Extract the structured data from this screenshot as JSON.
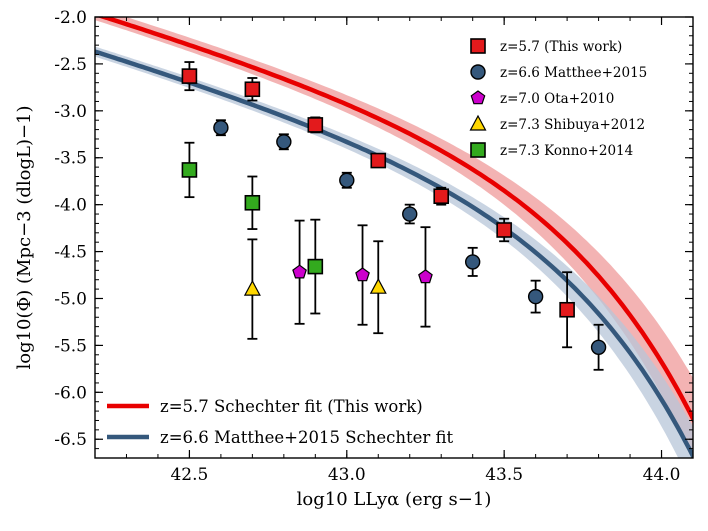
{
  "chart_data": {
    "type": "scatter",
    "xlabel": "log10 LLyα (erg s−1)",
    "ylabel": "log10(Φ) (Mpc−3 (dlogL)−1)",
    "xlim": [
      42.2,
      44.1
    ],
    "ylim": [
      -6.7,
      -2.0
    ],
    "xticks": [
      42.5,
      43.0,
      43.5,
      44.0
    ],
    "xtick_labels": [
      "42.5",
      "43.0",
      "43.5",
      "44.0"
    ],
    "yticks": [
      -2.0,
      -2.5,
      -3.0,
      -3.5,
      -4.0,
      -4.5,
      -5.0,
      -5.5,
      -6.0,
      -6.5
    ],
    "ytick_labels": [
      "-2.0",
      "-2.5",
      "-3.0",
      "-3.5",
      "-4.0",
      "-4.5",
      "-5.0",
      "-5.5",
      "-6.0",
      "-6.5"
    ],
    "series": [
      {
        "name": "z=5.7 (This work)",
        "marker": "square",
        "color": "#e31a1c",
        "points": [
          {
            "x": 42.5,
            "y": -2.63,
            "err": 0.15
          },
          {
            "x": 42.7,
            "y": -2.77,
            "err": 0.12
          },
          {
            "x": 42.9,
            "y": -3.15,
            "err": 0.08
          },
          {
            "x": 43.1,
            "y": -3.53,
            "err": 0.06
          },
          {
            "x": 43.3,
            "y": -3.91,
            "err": 0.09
          },
          {
            "x": 43.5,
            "y": -4.27,
            "err": 0.12
          },
          {
            "x": 43.7,
            "y": -5.12,
            "err": 0.4
          }
        ]
      },
      {
        "name": "z=6.6 Matthee+2015",
        "marker": "circle",
        "color": "#35587c",
        "points": [
          {
            "x": 42.6,
            "y": -3.18,
            "err": 0.08
          },
          {
            "x": 42.8,
            "y": -3.33,
            "err": 0.08
          },
          {
            "x": 43.0,
            "y": -3.74,
            "err": 0.08
          },
          {
            "x": 43.2,
            "y": -4.1,
            "err": 0.1
          },
          {
            "x": 43.4,
            "y": -4.61,
            "err": 0.15
          },
          {
            "x": 43.6,
            "y": -4.98,
            "err": 0.17
          },
          {
            "x": 43.8,
            "y": -5.52,
            "err": 0.24
          }
        ]
      },
      {
        "name": "z=7.0 Ota+2010",
        "marker": "pentagon",
        "color": "#cc00cc",
        "points": [
          {
            "x": 42.85,
            "y": -4.72,
            "err": 0.55
          },
          {
            "x": 43.05,
            "y": -4.75,
            "err": 0.53
          },
          {
            "x": 43.25,
            "y": -4.77,
            "err": 0.53
          }
        ]
      },
      {
        "name": "z=7.3 Shibuya+2012",
        "marker": "triangle",
        "color": "#ffd700",
        "points": [
          {
            "x": 42.7,
            "y": -4.9,
            "err": 0.53
          },
          {
            "x": 43.1,
            "y": -4.88,
            "err": 0.49
          }
        ]
      },
      {
        "name": "z=7.3 Konno+2014",
        "marker": "square",
        "color": "#33aa1e",
        "points": [
          {
            "x": 42.5,
            "y": -3.63,
            "err": 0.29
          },
          {
            "x": 42.7,
            "y": -3.98,
            "err": 0.28
          },
          {
            "x": 42.9,
            "y": -4.66,
            "err": 0.5
          }
        ]
      }
    ],
    "fits": [
      {
        "name": "z=5.7 Schechter fit (This work)",
        "color": "#e80000",
        "band_color": "#ef9a9a",
        "logPhiStar": -3.45,
        "logLstar": 43.35,
        "alpha": -2.0,
        "band_upper": {
          "logPhiStar": -3.45,
          "logLstar": 43.42,
          "alpha": -2.0
        },
        "band_lower": {
          "logPhiStar": -3.45,
          "logLstar": 43.29,
          "alpha": -2.0
        }
      },
      {
        "name": "z=6.6 Matthee+2015 Schechter fit",
        "color": "#35587c",
        "band_color": "#b7c6d8",
        "logPhiStar": -3.85,
        "logLstar": 43.35,
        "alpha": -2.0,
        "band_upper": {
          "logPhiStar": -3.85,
          "logLstar": 43.4,
          "alpha": -2.0
        },
        "band_lower": {
          "logPhiStar": -3.85,
          "logLstar": 43.3,
          "alpha": -2.0
        }
      }
    ],
    "legend_position": "top-right",
    "fit_legend_position": "bottom-left"
  }
}
